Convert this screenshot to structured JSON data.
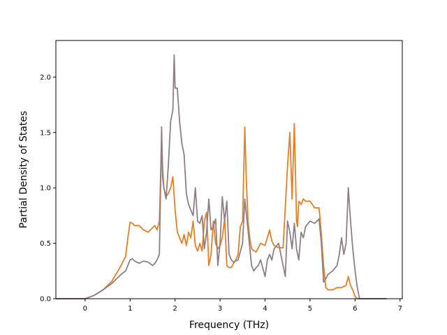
{
  "chart_data": {
    "type": "line",
    "title": "",
    "xlabel": "Frequency (THz)",
    "ylabel": "Partial Density of States",
    "xlim": [
      -0.65,
      7.05
    ],
    "ylim": [
      0,
      2.33
    ],
    "xticks": [
      0,
      1,
      2,
      3,
      4,
      5,
      6,
      7
    ],
    "yticks": [
      0.0,
      0.5,
      1.0,
      1.5,
      2.0
    ],
    "xtick_labels": [
      "0",
      "1",
      "2",
      "3",
      "4",
      "5",
      "6",
      "7"
    ],
    "ytick_labels": [
      "0.0",
      "0.5",
      "1.0",
      "1.5",
      "2.0"
    ],
    "grid": false,
    "series": [
      {
        "color": "#e67e22",
        "x": [
          -0.65,
          0.0,
          0.2,
          0.4,
          0.6,
          0.8,
          0.9,
          0.95,
          1.0,
          1.05,
          1.1,
          1.2,
          1.3,
          1.4,
          1.5,
          1.55,
          1.6,
          1.65,
          1.7,
          1.72,
          1.75,
          1.8,
          1.85,
          1.9,
          1.95,
          2.0,
          2.05,
          2.1,
          2.15,
          2.2,
          2.25,
          2.3,
          2.35,
          2.4,
          2.45,
          2.5,
          2.55,
          2.6,
          2.65,
          2.7,
          2.75,
          2.8,
          2.85,
          2.9,
          2.95,
          3.0,
          3.05,
          3.1,
          3.15,
          3.2,
          3.25,
          3.3,
          3.35,
          3.4,
          3.45,
          3.5,
          3.55,
          3.58,
          3.62,
          3.66,
          3.7,
          3.8,
          3.9,
          4.0,
          4.05,
          4.1,
          4.15,
          4.2,
          4.3,
          4.4,
          4.5,
          4.55,
          4.6,
          4.65,
          4.7,
          4.72,
          4.75,
          4.8,
          4.85,
          4.9,
          5.0,
          5.1,
          5.2,
          5.25,
          5.3,
          5.35,
          5.4,
          5.5,
          5.6,
          5.7,
          5.8,
          5.85,
          5.9,
          5.95,
          6.0,
          6.05,
          6.1,
          6.7
        ],
        "y": [
          0.0,
          0.0,
          0.03,
          0.08,
          0.16,
          0.3,
          0.38,
          0.55,
          0.69,
          0.68,
          0.66,
          0.66,
          0.62,
          0.6,
          0.64,
          0.66,
          0.62,
          0.7,
          1.45,
          1.2,
          1.0,
          0.92,
          0.95,
          1.0,
          1.1,
          0.8,
          0.6,
          0.55,
          0.5,
          0.58,
          0.48,
          0.6,
          0.55,
          0.7,
          0.48,
          0.43,
          0.5,
          0.43,
          0.7,
          0.78,
          0.3,
          0.4,
          0.7,
          0.5,
          0.45,
          0.48,
          0.55,
          0.72,
          0.3,
          0.28,
          0.28,
          0.32,
          0.35,
          0.4,
          0.65,
          0.7,
          1.55,
          1.1,
          0.7,
          0.55,
          0.45,
          0.42,
          0.5,
          0.48,
          0.55,
          0.62,
          0.52,
          0.48,
          0.46,
          0.46,
          1.2,
          1.5,
          0.9,
          1.58,
          0.7,
          0.65,
          0.88,
          0.85,
          0.9,
          0.88,
          0.88,
          0.82,
          0.82,
          0.58,
          0.3,
          0.1,
          0.08,
          0.08,
          0.1,
          0.1,
          0.12,
          0.2,
          0.12,
          0.08,
          0.02,
          0.0,
          0.0,
          0.0
        ]
      },
      {
        "color": "#8c7f86",
        "x": [
          -0.65,
          0.0,
          0.2,
          0.4,
          0.6,
          0.8,
          0.9,
          0.95,
          1.0,
          1.05,
          1.1,
          1.2,
          1.3,
          1.4,
          1.5,
          1.55,
          1.6,
          1.65,
          1.7,
          1.72,
          1.75,
          1.8,
          1.85,
          1.9,
          1.95,
          1.98,
          2.0,
          2.05,
          2.1,
          2.15,
          2.2,
          2.25,
          2.3,
          2.35,
          2.4,
          2.45,
          2.5,
          2.55,
          2.6,
          2.65,
          2.7,
          2.75,
          2.8,
          2.85,
          2.9,
          2.95,
          3.0,
          3.05,
          3.1,
          3.15,
          3.2,
          3.25,
          3.3,
          3.4,
          3.5,
          3.55,
          3.6,
          3.65,
          3.7,
          3.75,
          3.8,
          3.85,
          3.9,
          4.0,
          4.05,
          4.1,
          4.15,
          4.2,
          4.3,
          4.4,
          4.45,
          4.5,
          4.55,
          4.6,
          4.65,
          4.7,
          4.75,
          4.8,
          4.85,
          4.9,
          5.0,
          5.1,
          5.2,
          5.25,
          5.3,
          5.35,
          5.4,
          5.5,
          5.6,
          5.65,
          5.7,
          5.75,
          5.8,
          5.85,
          5.9,
          5.95,
          6.0,
          6.05,
          6.1,
          6.7
        ],
        "y": [
          0.0,
          0.0,
          0.03,
          0.08,
          0.14,
          0.22,
          0.25,
          0.3,
          0.35,
          0.36,
          0.34,
          0.32,
          0.34,
          0.33,
          0.3,
          0.32,
          0.35,
          0.4,
          1.55,
          1.1,
          1.0,
          0.9,
          1.2,
          1.6,
          1.7,
          2.2,
          1.9,
          1.9,
          1.6,
          1.4,
          1.3,
          0.95,
          0.85,
          0.8,
          0.75,
          1.0,
          0.7,
          0.68,
          0.75,
          0.45,
          0.6,
          0.9,
          0.62,
          0.65,
          0.72,
          0.3,
          0.5,
          0.92,
          0.7,
          0.88,
          0.4,
          0.35,
          0.33,
          0.35,
          0.5,
          0.9,
          0.7,
          0.5,
          0.3,
          0.25,
          0.28,
          0.3,
          0.35,
          0.2,
          0.35,
          0.4,
          0.35,
          0.45,
          0.5,
          0.3,
          0.2,
          0.7,
          0.6,
          0.45,
          0.68,
          0.45,
          0.35,
          0.6,
          0.55,
          0.65,
          0.7,
          0.68,
          0.72,
          0.5,
          0.15,
          0.18,
          0.22,
          0.25,
          0.3,
          0.4,
          0.55,
          0.4,
          0.5,
          1.0,
          0.7,
          0.45,
          0.25,
          0.1,
          0.0,
          0.0
        ]
      }
    ]
  }
}
